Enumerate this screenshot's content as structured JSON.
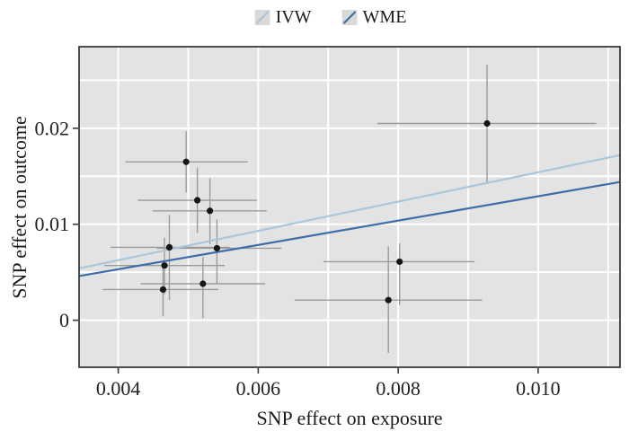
{
  "legend": {
    "items": [
      {
        "label": "IVW",
        "color": "#a9c6da",
        "swatch_bg": "#d9d9d9"
      },
      {
        "label": "WME",
        "color": "#3d6ea8",
        "swatch_bg": "#d9d9d9"
      }
    ]
  },
  "chart_data": {
    "type": "scatter",
    "title": "",
    "xlabel": "SNP effect on exposure",
    "ylabel": "SNP effect on outcome",
    "xlim": [
      0.00344,
      0.01117
    ],
    "ylim": [
      -0.0049,
      0.0285
    ],
    "x_ticks": [
      0.004,
      0.006,
      0.008,
      0.01
    ],
    "x_tick_labels": [
      "0.004",
      "0.006",
      "0.008",
      "0.010"
    ],
    "y_ticks": [
      0,
      0.01,
      0.02
    ],
    "y_tick_labels": [
      "0",
      "0.01",
      "0.02"
    ],
    "x_gridlines": [
      0.004,
      0.005,
      0.006,
      0.007,
      0.008,
      0.009,
      0.01,
      0.011
    ],
    "y_gridlines": [
      0,
      0.005,
      0.01,
      0.015,
      0.02,
      0.025
    ],
    "grid": true,
    "legend_position": "top-center",
    "points": [
      {
        "x": 0.00497,
        "y": 0.0165,
        "x_min": 0.0041,
        "x_max": 0.00585,
        "y_min": 0.0133,
        "y_max": 0.0197
      },
      {
        "x": 0.00513,
        "y": 0.0125,
        "x_min": 0.00428,
        "x_max": 0.00598,
        "y_min": 0.0091,
        "y_max": 0.0159
      },
      {
        "x": 0.00531,
        "y": 0.0114,
        "x_min": 0.00449,
        "x_max": 0.00612,
        "y_min": 0.0079,
        "y_max": 0.0148
      },
      {
        "x": 0.00473,
        "y": 0.0076,
        "x_min": 0.00389,
        "x_max": 0.00559,
        "y_min": 0.0021,
        "y_max": 0.011
      },
      {
        "x": 0.00541,
        "y": 0.0075,
        "x_min": 0.00455,
        "x_max": 0.00633,
        "y_min": 0.0038,
        "y_max": 0.0105
      },
      {
        "x": 0.00466,
        "y": 0.0057,
        "x_min": 0.0038,
        "x_max": 0.00552,
        "y_min": 0.0027,
        "y_max": 0.0086
      },
      {
        "x": 0.00464,
        "y": 0.0032,
        "x_min": 0.00378,
        "x_max": 0.00543,
        "y_min": 0.0004,
        "y_max": 0.006
      },
      {
        "x": 0.00521,
        "y": 0.0038,
        "x_min": 0.00432,
        "x_max": 0.0061,
        "y_min": 0.0002,
        "y_max": 0.0066
      },
      {
        "x": 0.00802,
        "y": 0.0061,
        "x_min": 0.00693,
        "x_max": 0.00909,
        "y_min": 0.0016,
        "y_max": 0.008
      },
      {
        "x": 0.00786,
        "y": 0.0021,
        "x_min": 0.00652,
        "x_max": 0.0092,
        "y_min": -0.0034,
        "y_max": 0.0077
      },
      {
        "x": 0.00927,
        "y": 0.0205,
        "x_min": 0.0077,
        "x_max": 0.01083,
        "y_min": 0.0144,
        "y_max": 0.0266
      }
    ],
    "lines": [
      {
        "name": "IVW",
        "color": "#a9c6da",
        "slope": 1.53,
        "intercept": 0.00015,
        "x0": 0.00344,
        "y0": 0.0054,
        "x1": 0.01117,
        "y1": 0.0172
      },
      {
        "name": "WME",
        "color": "#3d6ea8",
        "slope": 1.27,
        "intercept": 0.0001,
        "x0": 0.00344,
        "y0": 0.0046,
        "x1": 0.01117,
        "y1": 0.0144
      }
    ],
    "styles": {
      "plot_bg": "#e3e3e3",
      "gridline": "#ffffff",
      "frame": "#3a3a3a",
      "error_bar": "#9b9b9b",
      "point": "#161616",
      "tick": "#3a3a3a"
    }
  }
}
